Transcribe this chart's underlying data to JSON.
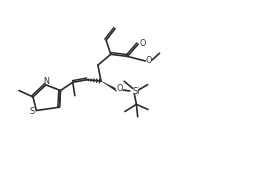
{
  "bg_color": "#ffffff",
  "line_color": "#2a2a2a",
  "line_width": 1.2,
  "figsize": [
    2.61,
    1.81
  ],
  "dpi": 100,
  "xlim": [
    0,
    10
  ],
  "ylim": [
    0,
    7
  ]
}
